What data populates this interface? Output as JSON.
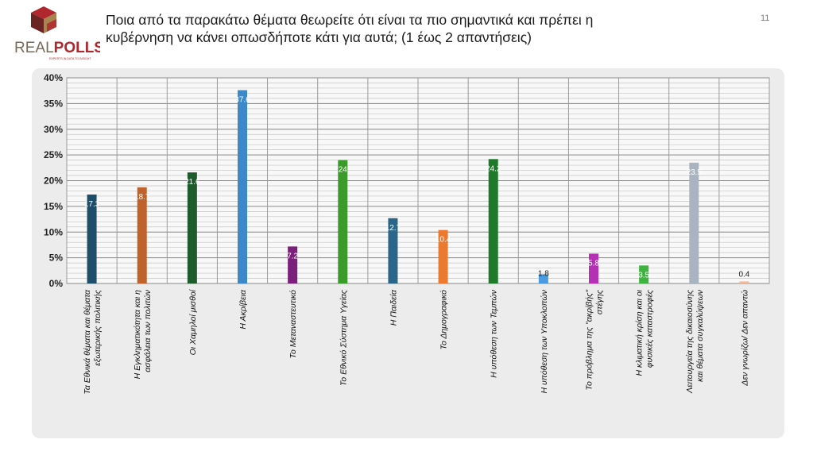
{
  "header": {
    "title": "Ποια από τα παρακάτω θέματα θεωρείτε ότι είναι τα πιο σημαντικά και πρέπει η κυβέρνηση να κάνει οπωσδήποτε κάτι για αυτά; (1 έως 2 απαντήσεις)",
    "page_number": "11"
  },
  "logo": {
    "name": "REALPOLLS",
    "tagline": "EXPERTS IN DATA TO INSIGHT",
    "colors": {
      "top": "#b0272d",
      "left": "#6b2423",
      "right": "#a8854f",
      "wordmark_real": "#7a6a55",
      "wordmark_polls": "#b0272d"
    }
  },
  "chart_data": {
    "type": "bar",
    "title": "",
    "xlabel": "",
    "ylabel": "",
    "ylim": [
      0,
      40
    ],
    "y_ticks": [
      "0%",
      "5%",
      "10%",
      "15%",
      "20%",
      "25%",
      "30%",
      "35%",
      "40%"
    ],
    "grid": true,
    "legend": "none",
    "categories": [
      [
        "Τα Εθνικά θέματα και θέματα",
        "εξωτερικής πολιτικής"
      ],
      [
        "Η Εγκληματικότητα και η",
        "ασφάλεια των πολιτών"
      ],
      [
        "Οι Χαμηλοί μισθοί"
      ],
      [
        "Η Ακρίβεια"
      ],
      [
        "Το Μεταναστευτικό"
      ],
      [
        "Το Εθνικό Σύστημα Υγείας"
      ],
      [
        "Η Παιδεία"
      ],
      [
        "Το Δημογραφικό"
      ],
      [
        "Η υπόθεση των Τεμπών"
      ],
      [
        "Η υπόθεση των Υποκλοπών"
      ],
      [
        "Το πρόβλημα της \"ακρίβής\"",
        "στέγης"
      ],
      [
        "Η κλιματική κρίση και οι",
        "φυσικές καταστροφές"
      ],
      [
        "Λειτουργεία της δικαιοσύνης",
        "και θέματα συγκαλύψεων"
      ],
      [
        "Δεν γνωρίζω/  Δεν απαντώ"
      ]
    ],
    "values": [
      17.3,
      18.7,
      21.6,
      37.6,
      7.2,
      24,
      12.7,
      10.4,
      24.2,
      1.8,
      5.8,
      3.5,
      23.5,
      0.4
    ],
    "value_labels": [
      "17.3",
      "18.7",
      "21.6",
      "37.6",
      "7.2",
      "24",
      "12.7",
      "10.4",
      "24.2",
      "1.8",
      "5.8",
      "3.5",
      "23.5",
      "0.4"
    ],
    "colors": [
      "#1f4e6b",
      "#c0622b",
      "#1e5c2e",
      "#3c88c8",
      "#7a1f7a",
      "#3a9a2a",
      "#2b6589",
      "#ea7a30",
      "#1e7a2a",
      "#4b9be0",
      "#b530b5",
      "#3fb33f",
      "#a9b4c0",
      "#f1b89a"
    ]
  }
}
